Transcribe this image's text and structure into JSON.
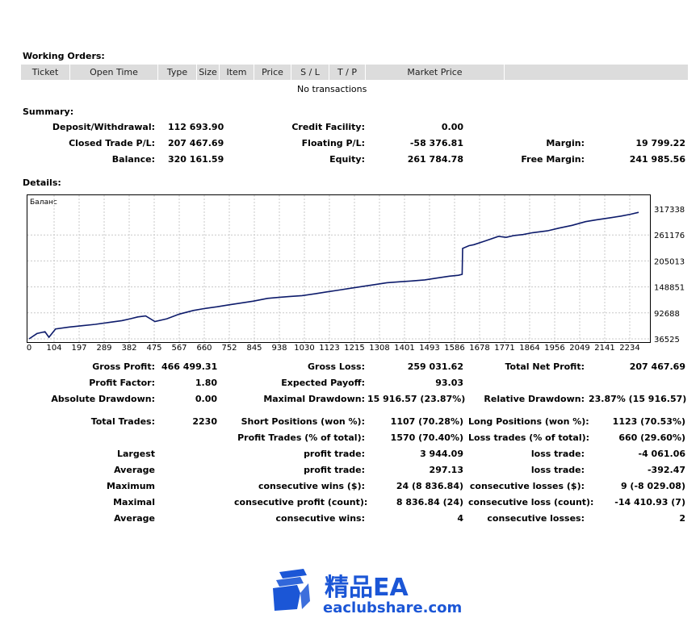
{
  "working_orders": {
    "title": "Working Orders:",
    "columns": [
      "Ticket",
      "Open Time",
      "Type",
      "Size",
      "Item",
      "Price",
      "S / L",
      "T / P",
      "Market Price",
      ""
    ],
    "empty_text": "No transactions"
  },
  "summary": {
    "title": "Summary:",
    "deposit_withdrawal": {
      "label": "Deposit/Withdrawal:",
      "value": "112 693.90"
    },
    "credit_facility": {
      "label": "Credit Facility:",
      "value": "0.00"
    },
    "closed_trade_pl": {
      "label": "Closed Trade P/L:",
      "value": "207 467.69"
    },
    "floating_pl": {
      "label": "Floating P/L:",
      "value": "-58 376.81"
    },
    "margin": {
      "label": "Margin:",
      "value": "19 799.22"
    },
    "balance": {
      "label": "Balance:",
      "value": "320 161.59"
    },
    "equity": {
      "label": "Equity:",
      "value": "261 784.78"
    },
    "free_margin": {
      "label": "Free Margin:",
      "value": "241 985.56"
    }
  },
  "details": {
    "title": "Details:"
  },
  "chart_data": {
    "type": "line",
    "series_label": "Баланс",
    "line_color": "#0d1b6b",
    "grid": true,
    "x_ticks": [
      "0",
      "104",
      "197",
      "289",
      "382",
      "475",
      "567",
      "660",
      "752",
      "845",
      "938",
      "1030",
      "1123",
      "1215",
      "1308",
      "1401",
      "1493",
      "1586",
      "1678",
      "1771",
      "1864",
      "1956",
      "2049",
      "2141",
      "2234"
    ],
    "y_ticks": [
      "317338",
      "261176",
      "205013",
      "148851",
      "92688",
      "36525"
    ],
    "ylim": [
      36525,
      317338
    ],
    "xlim": [
      0,
      2300
    ],
    "x": [
      0,
      30,
      60,
      75,
      100,
      150,
      200,
      250,
      300,
      350,
      382,
      410,
      440,
      475,
      520,
      567,
      620,
      660,
      710,
      752,
      800,
      845,
      900,
      938,
      980,
      1030,
      1080,
      1123,
      1170,
      1215,
      1260,
      1308,
      1350,
      1401,
      1450,
      1493,
      1540,
      1586,
      1620,
      1634,
      1636,
      1660,
      1678,
      1720,
      1771,
      1800,
      1830,
      1864,
      1900,
      1956,
      2000,
      2049,
      2100,
      2141,
      2190,
      2234,
      2270,
      2300
    ],
    "y": [
      36525,
      48000,
      52000,
      40000,
      58000,
      62000,
      65000,
      68000,
      72000,
      76000,
      80000,
      84000,
      86000,
      74000,
      80000,
      90000,
      98000,
      102000,
      106000,
      110000,
      114000,
      118000,
      124000,
      126000,
      128000,
      130000,
      134000,
      138000,
      142000,
      146000,
      150000,
      154000,
      158000,
      160000,
      162000,
      164000,
      168000,
      172000,
      174000,
      176000,
      232000,
      238000,
      240000,
      248000,
      258000,
      256000,
      260000,
      262000,
      266000,
      270000,
      276000,
      282000,
      290000,
      294000,
      298000,
      302000,
      306000,
      310000
    ]
  },
  "details_stats": {
    "gross_profit": {
      "label": "Gross Profit:",
      "value": "466 499.31"
    },
    "gross_loss": {
      "label": "Gross Loss:",
      "value": "259 031.62"
    },
    "total_net_profit": {
      "label": "Total Net Profit:",
      "value": "207 467.69"
    },
    "profit_factor": {
      "label": "Profit Factor:",
      "value": "1.80"
    },
    "expected_payoff": {
      "label": "Expected Payoff:",
      "value": "93.03"
    },
    "absolute_drawdown": {
      "label": "Absolute Drawdown:",
      "value": "0.00"
    },
    "maximal_drawdown": {
      "label": "Maximal Drawdown:",
      "value": "15 916.57 (23.87%)"
    },
    "relative_drawdown": {
      "label": "Relative Drawdown:",
      "value": "23.87% (15 916.57)"
    },
    "total_trades": {
      "label": "Total Trades:",
      "value": "2230"
    },
    "short_positions": {
      "label": "Short Positions (won %):",
      "value": "1107 (70.28%)"
    },
    "long_positions": {
      "label": "Long Positions (won %):",
      "value": "1123 (70.53%)"
    },
    "profit_trades": {
      "label": "Profit Trades (% of total):",
      "value": "1570 (70.40%)"
    },
    "loss_trades": {
      "label": "Loss trades (% of total):",
      "value": "660 (29.60%)"
    },
    "rows": [
      {
        "prefix": "Largest",
        "label1": "profit trade:",
        "value1": "3 944.09",
        "label2": "loss trade:",
        "value2": "-4 061.06"
      },
      {
        "prefix": "Average",
        "label1": "profit trade:",
        "value1": "297.13",
        "label2": "loss trade:",
        "value2": "-392.47"
      },
      {
        "prefix": "Maximum",
        "label1": "consecutive wins ($):",
        "value1": "24 (8 836.84)",
        "label2": "consecutive losses ($):",
        "value2": "9 (-8 029.08)"
      },
      {
        "prefix": "Maximal",
        "label1": "consecutive profit (count):",
        "value1": "8 836.84 (24)",
        "label2": "consecutive loss (count):",
        "value2": "-14 410.93 (7)"
      },
      {
        "prefix": "Average",
        "label1": "consecutive wins:",
        "value1": "4",
        "label2": "consecutive losses:",
        "value2": "2"
      }
    ]
  },
  "watermark": {
    "brand": "精品EA",
    "url": "eaclubshare.com",
    "color": "#1b56d6"
  }
}
